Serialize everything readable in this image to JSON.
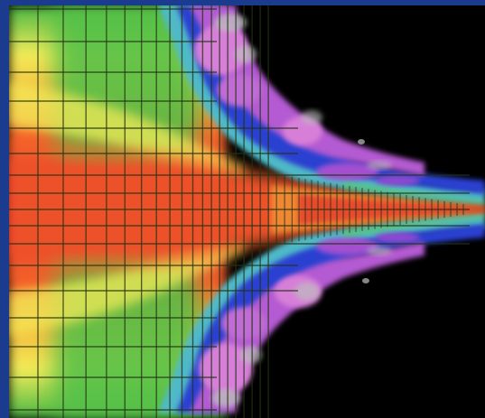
{
  "image": {
    "kind": "colormap-simulation",
    "frame_color": "#1b3b8e",
    "background_color": "#000000",
    "colormap": [
      "#e53a2a",
      "#f5632a",
      "#f4b53a",
      "#f3ec58",
      "#5fc84d",
      "#45b845",
      "#4fb9c8",
      "#2b3fd0",
      "#a34fd0",
      "#d77fd8",
      "#bdbdbd"
    ],
    "grid_line_color": "#243314"
  }
}
